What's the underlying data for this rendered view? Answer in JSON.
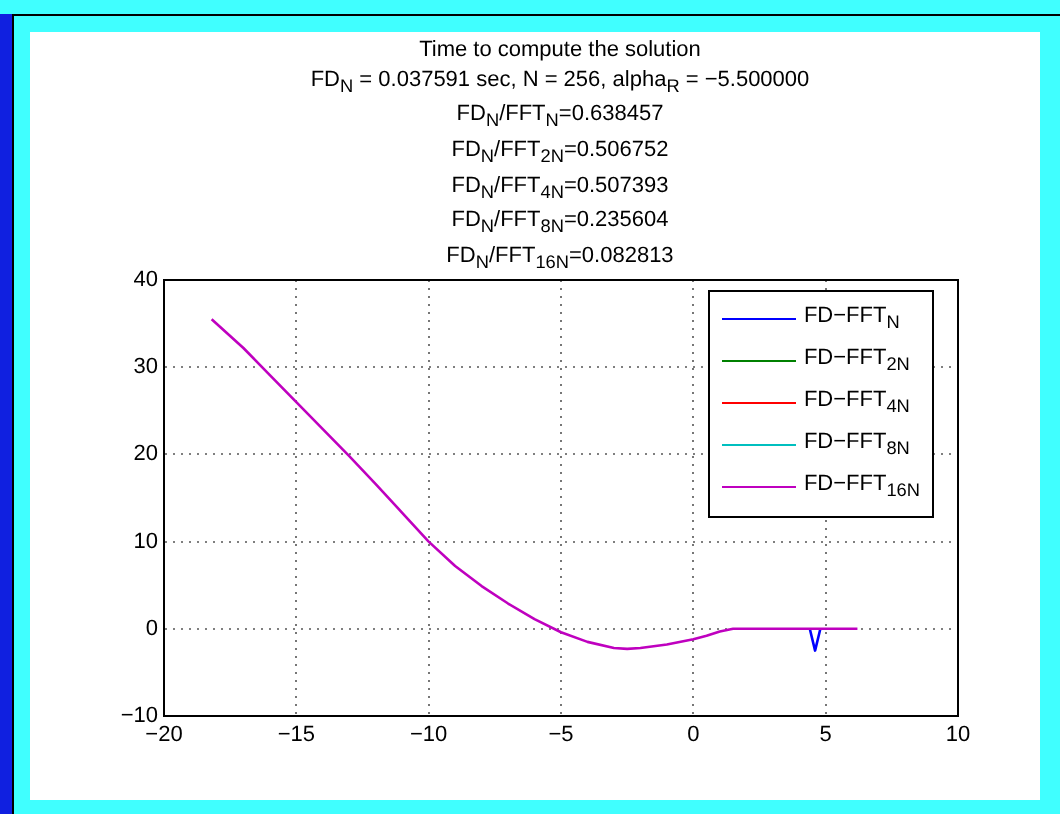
{
  "chart_data": {
    "type": "line",
    "title": "Time to compute the solution\nFD$_{N}$ = 0.037591 sec, N = 256, alpha$_{R}$ = −5.500000\nFD$_{N}$/FFT$_{N}$=0.638457\nFD$_{N}$/FFT$_{2N}$=0.506752\nFD$_{N}$/FFT$_{4N}$=0.507393\nFD$_{N}$/FFT$_{8N}$=0.235604\nFD$_{N}$/FFT$_{16N}$=0.082813",
    "x": [
      -18.2,
      -17,
      -16,
      -15,
      -14,
      -13,
      -12,
      -11,
      -10,
      -9,
      -8,
      -7,
      -6,
      -5,
      -4,
      -3,
      -2.5,
      -2,
      -1,
      0,
      0.5,
      1,
      1.5,
      2,
      4.4,
      4.6,
      4.8,
      6.2
    ],
    "series": [
      {
        "name": "FD−FFT$_{N}$",
        "color": "#0000ff",
        "values": [
          null,
          null,
          null,
          null,
          null,
          null,
          null,
          null,
          null,
          null,
          null,
          null,
          null,
          null,
          null,
          null,
          null,
          null,
          null,
          null,
          null,
          null,
          null,
          null,
          0,
          -2.5,
          0,
          null
        ]
      },
      {
        "name": "FD−FFT$_{2N}$",
        "color": "#008000",
        "values": [
          null,
          null,
          null,
          null,
          null,
          null,
          null,
          null,
          null,
          null,
          null,
          null,
          null,
          null,
          null,
          null,
          null,
          null,
          null,
          null,
          null,
          null,
          null,
          null,
          null,
          null,
          null,
          null
        ]
      },
      {
        "name": "FD−FFT$_{4N}$",
        "color": "#ff0000",
        "values": [
          null,
          null,
          null,
          null,
          null,
          null,
          null,
          null,
          null,
          null,
          null,
          null,
          null,
          null,
          null,
          null,
          null,
          null,
          null,
          null,
          null,
          null,
          null,
          null,
          null,
          null,
          null,
          null
        ]
      },
      {
        "name": "FD−FFT$_{8N}$",
        "color": "#00bfbf",
        "values": [
          null,
          null,
          null,
          null,
          null,
          null,
          null,
          null,
          null,
          null,
          null,
          null,
          null,
          null,
          null,
          null,
          null,
          null,
          null,
          null,
          null,
          null,
          null,
          null,
          null,
          null,
          null,
          null
        ]
      },
      {
        "name": "FD−FFT$_{16N}$",
        "color": "#bf00bf",
        "values": [
          35.5,
          32.2,
          29.1,
          26,
          22.9,
          19.8,
          16.6,
          13.3,
          10,
          7.2,
          4.9,
          2.9,
          1.1,
          -0.4,
          -1.5,
          -2.2,
          -2.3,
          -2.2,
          -1.8,
          -1.2,
          -0.8,
          -0.3,
          0,
          0,
          0,
          0,
          0,
          0
        ]
      }
    ],
    "xlim": [
      -20,
      10
    ],
    "xticks": [
      -20,
      -15,
      -10,
      -5,
      0,
      5,
      10
    ],
    "ylim": [
      -10,
      40
    ],
    "yticks": [
      -10,
      0,
      10,
      20,
      30,
      40
    ],
    "grid": true,
    "legend": "top right"
  }
}
